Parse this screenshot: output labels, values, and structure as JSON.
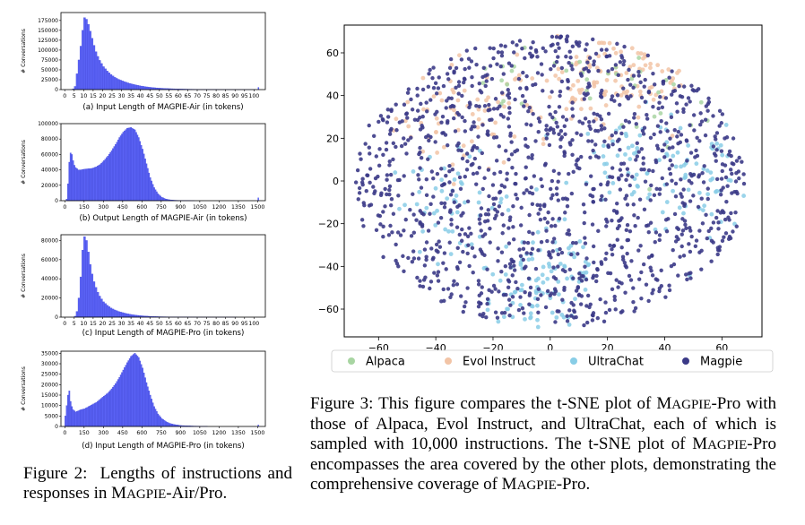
{
  "figure2": {
    "histograms": [
      {
        "caption": "(a) Input Length of MAGPIE-Air (in tokens)",
        "ylabel": "# Conversations",
        "yticks": [
          "0",
          "25000",
          "50000",
          "75000",
          "100000",
          "125000",
          "150000",
          "175000"
        ],
        "xticks": [
          "0",
          "5",
          "10",
          "15",
          "20",
          "25",
          "30",
          "35",
          "40",
          "45",
          "50",
          "55",
          "60",
          "65",
          "70",
          "75",
          "80",
          "85",
          "90",
          "95",
          "100"
        ],
        "chart_data": {
          "type": "bar",
          "xlim": [
            -2,
            106
          ],
          "ylim": [
            0,
            195000
          ],
          "bin_width": 1,
          "x": [
            4,
            5,
            6,
            7,
            8,
            9,
            10,
            11,
            12,
            13,
            14,
            15,
            16,
            17,
            18,
            19,
            20,
            22,
            24,
            26,
            28,
            30,
            32,
            34,
            36,
            38,
            40,
            42,
            44,
            46,
            48,
            50,
            55,
            60,
            65,
            70,
            75,
            80,
            85,
            90,
            95,
            100,
            102
          ],
          "values": [
            2000,
            8000,
            40000,
            75000,
            110000,
            150000,
            182000,
            178000,
            165000,
            148000,
            130000,
            112000,
            96000,
            84000,
            74000,
            66000,
            58000,
            47000,
            38000,
            31000,
            26000,
            22000,
            18500,
            15500,
            13000,
            11000,
            9000,
            7500,
            6200,
            5200,
            4300,
            3600,
            2400,
            1600,
            1100,
            750,
            500,
            350,
            250,
            180,
            130,
            100,
            6000
          ]
        }
      },
      {
        "caption": "(b) Output Length of MAGPIE-Air (in tokens)",
        "ylabel": "# Conversations",
        "yticks": [
          "0",
          "20000",
          "40000",
          "60000",
          "80000",
          "100000"
        ],
        "xticks": [
          "0",
          "150",
          "300",
          "450",
          "600",
          "750",
          "900",
          "1050",
          "1200",
          "1350",
          "1500"
        ],
        "chart_data": {
          "type": "bar",
          "xlim": [
            -30,
            1560
          ],
          "ylim": [
            0,
            100000
          ],
          "bin_width": 10,
          "x": [
            10,
            20,
            30,
            40,
            50,
            60,
            70,
            80,
            100,
            120,
            150,
            180,
            210,
            240,
            270,
            300,
            330,
            360,
            390,
            420,
            450,
            480,
            510,
            540,
            570,
            600,
            630,
            660,
            690,
            720,
            750,
            780,
            810,
            850,
            900,
            1000,
            1500
          ],
          "values": [
            2000,
            22000,
            50000,
            62000,
            60000,
            52000,
            46000,
            43000,
            40000,
            40000,
            41000,
            41500,
            42000,
            44000,
            47000,
            52000,
            58000,
            65000,
            73000,
            82000,
            89000,
            94000,
            95000,
            92000,
            82000,
            67000,
            48000,
            30000,
            17000,
            9000,
            4500,
            2200,
            1200,
            600,
            300,
            120,
            4000
          ]
        }
      },
      {
        "caption": "(c) Input Length of MAGPIE-Pro (in tokens)",
        "ylabel": "# Conversations",
        "yticks": [
          "0",
          "20000",
          "40000",
          "60000",
          "80000"
        ],
        "xticks": [
          "0",
          "5",
          "10",
          "15",
          "20",
          "25",
          "30",
          "35",
          "40",
          "45",
          "50",
          "55",
          "60",
          "65",
          "70",
          "75",
          "80",
          "85",
          "90",
          "95",
          "100"
        ],
        "chart_data": {
          "type": "bar",
          "xlim": [
            -2,
            106
          ],
          "ylim": [
            0,
            86000
          ],
          "bin_width": 1,
          "x": [
            5,
            6,
            7,
            8,
            9,
            10,
            11,
            12,
            13,
            14,
            15,
            16,
            17,
            18,
            19,
            20,
            22,
            24,
            26,
            28,
            30,
            32,
            34,
            36,
            38,
            40,
            42,
            44,
            46,
            48,
            50,
            55,
            60,
            65,
            70,
            80,
            90,
            100
          ],
          "values": [
            1000,
            6000,
            20000,
            42000,
            70000,
            84000,
            80000,
            68000,
            55000,
            45000,
            37000,
            31000,
            26000,
            22000,
            19000,
            16000,
            12500,
            9500,
            7500,
            6000,
            4800,
            3800,
            3000,
            2400,
            1900,
            1500,
            1200,
            950,
            750,
            600,
            480,
            320,
            220,
            150,
            100,
            60,
            40,
            30
          ]
        }
      },
      {
        "caption": "(d) Input Length of MAGPIE-Pro (in tokens)",
        "ylabel": "# Conversations",
        "yticks": [
          "0",
          "5000",
          "10000",
          "15000",
          "20000",
          "25000",
          "30000",
          "35000"
        ],
        "xticks": [
          "0",
          "150",
          "300",
          "450",
          "600",
          "750",
          "900",
          "1050",
          "1200",
          "1350",
          "1500"
        ],
        "chart_data": {
          "type": "bar",
          "xlim": [
            -30,
            1560
          ],
          "ylim": [
            0,
            36000
          ],
          "bin_width": 10,
          "x": [
            0,
            10,
            20,
            30,
            40,
            50,
            60,
            70,
            80,
            100,
            120,
            150,
            180,
            210,
            240,
            270,
            300,
            330,
            360,
            390,
            420,
            450,
            480,
            510,
            540,
            570,
            600,
            630,
            660,
            690,
            720,
            750,
            780,
            810,
            850,
            900,
            1000,
            1100,
            1500
          ],
          "values": [
            5000,
            10000,
            15000,
            17000,
            12000,
            9500,
            8000,
            7500,
            7000,
            7500,
            8000,
            8500,
            9500,
            10500,
            11500,
            13000,
            14500,
            16000,
            18000,
            20500,
            23500,
            27000,
            30500,
            33500,
            35000,
            33000,
            28000,
            21000,
            15000,
            9500,
            6000,
            3800,
            2400,
            1500,
            900,
            450,
            200,
            100,
            800
          ]
        }
      }
    ],
    "caption": {
      "label": "Figure 2:",
      "text_pre": "Lengths of instructions and responses in ",
      "sc_first": "M",
      "sc_rest": "AGPIE",
      "text_post": "-Air/Pro."
    }
  },
  "figure3": {
    "chart_data": {
      "type": "scatter",
      "xlim": [
        -72,
        74
      ],
      "ylim": [
        -73,
        73
      ],
      "xticks": [
        "-60",
        "-40",
        "-20",
        "0",
        "20",
        "40",
        "60"
      ],
      "yticks": [
        "-60",
        "-40",
        "-20",
        "0",
        "20",
        "40",
        "60"
      ],
      "series": [
        {
          "name": "Alpaca",
          "color": "#a8d5a2"
        },
        {
          "name": "Evol Instruct",
          "color": "#f2c4a6"
        },
        {
          "name": "UltraChat",
          "color": "#88cde6"
        },
        {
          "name": "Magpie",
          "color": "#3b3a87"
        }
      ],
      "clusters": [
        {
          "series": "Evol Instruct",
          "x": [
            -30,
            30,
            10
          ],
          "y": [
            30,
            55,
            45
          ],
          "spread": 12,
          "n": 180
        },
        {
          "series": "Alpaca",
          "x": [
            -15,
            20,
            45
          ],
          "y": [
            45,
            60,
            30
          ],
          "spread": 10,
          "n": 40
        },
        {
          "series": "UltraChat",
          "x": [
            -35,
            0,
            -5,
            30,
            55
          ],
          "y": [
            -10,
            -40,
            -60,
            10,
            0
          ],
          "spread": 11,
          "n": 260
        },
        {
          "series": "Magpie",
          "x": [
            0
          ],
          "y": [
            0
          ],
          "spread": 40,
          "n": 1300
        }
      ],
      "legend_position": "bottom"
    },
    "caption": {
      "label": "Figure 3:",
      "text": "This figure compares the t-SNE plot of ",
      "sc_first": "M",
      "sc_rest": "AGPIE",
      "text2": "-Pro with those of Alpaca, Evol Instruct, and UltraChat, each of which is sampled with 10,000 instructions. The t-SNE plot of ",
      "text3": "-Pro encompasses the area covered by the other plots, demonstrating the comprehensive coverage of ",
      "text4": "-Pro."
    }
  }
}
